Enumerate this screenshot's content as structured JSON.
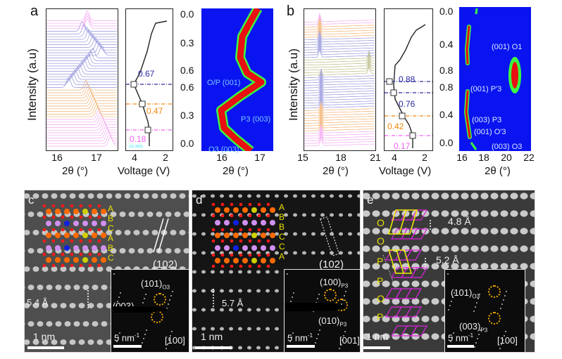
{
  "figure": {
    "panels": {
      "a": {
        "letter": "a",
        "xrd": {
          "ylabel": "Intensity (a.u)",
          "xlabel": "2θ (°)",
          "xticks": [
            "16",
            "17"
          ],
          "trace_colors": {
            "o3": "#f6a0f0",
            "transition": "#f2a860",
            "op": "#8a8ad8",
            "final": "#f6a0f0"
          }
        },
        "voltage": {
          "xlabel": "Voltage (V)",
          "xticks": [
            "4",
            "2"
          ],
          "markers": [
            {
              "x_value": "0.67",
              "color": "#2a2aa0"
            },
            {
              "x_value": "0.47",
              "color": "#f0880a"
            },
            {
              "x_value": "0.18",
              "color": "#f060f0"
            }
          ],
          "bottom_note": "O3 (003)"
        },
        "heatmap": {
          "xlabel": "2θ (°)",
          "xticks": [
            "16",
            "17"
          ],
          "yticks": [
            "0.0",
            "0.3",
            "0.6",
            "0.6",
            "0.3",
            "0.0"
          ],
          "labels": [
            "O/P (001)",
            "P3 (003)",
            "O3 (003)"
          ]
        }
      },
      "b": {
        "letter": "b",
        "xrd": {
          "ylabel": "Intensity (a.u)",
          "xlabel": "2θ (°)",
          "xticks": [
            "15",
            "18",
            "21"
          ]
        },
        "voltage": {
          "xlabel": "Voltage (V)",
          "xticks": [
            "4",
            "2"
          ],
          "markers": [
            {
              "x_value": "0.88",
              "color": "#2a2aa0"
            },
            {
              "x_value": "0.76",
              "color": "#2a2aa0"
            },
            {
              "x_value": "0.42",
              "color": "#f0880a"
            },
            {
              "x_value": "0.17",
              "color": "#f060f0"
            }
          ]
        },
        "heatmap": {
          "xlabel": "2θ (°)",
          "xticks": [
            "16",
            "18",
            "20",
            "22"
          ],
          "yticks": [
            "0.0",
            "0.4",
            "0.8",
            "0.8",
            "0.4",
            "0.0"
          ],
          "labels": [
            "(001) O1",
            "(001) P′3",
            "(003) P3",
            "(001) O′3",
            "(003) O3"
          ]
        }
      },
      "c": {
        "letter": "c",
        "stacking": [
          "A",
          "B",
          "C",
          "A",
          "B",
          "C"
        ],
        "plane": "(102)",
        "plane_bar": "1",
        "spacing": "5.4 Å",
        "scale": "1 nm",
        "inset": {
          "spot1": "(101)",
          "spot1_sub": "O3",
          "spot2": "(003)",
          "spot2_sub": "O3",
          "scale": "5 nm",
          "scale_sup": "-1",
          "zone": "[100]"
        }
      },
      "d": {
        "letter": "d",
        "stacking": [
          "A",
          "B",
          "B",
          "C",
          "C",
          "A"
        ],
        "plane": "(102)",
        "spacing": "5.7 Å",
        "scale": "1 nm",
        "inset": {
          "spot1": "(100)",
          "spot1_sub": "P3",
          "spot2": "(010)",
          "spot2_sub": "P3",
          "scale": "5 nm",
          "scale_sup": "-1",
          "zone": "[001]"
        }
      },
      "e": {
        "letter": "e",
        "stacking": [
          "O",
          "O",
          "P",
          "P",
          "O",
          "P"
        ],
        "spacing1": "4.8 Å",
        "spacing2": "5.2 Å",
        "scale": "1 nm",
        "inset": {
          "spot1": "(101)",
          "spot1_sub": "O3",
          "spot2": "(003)",
          "spot2_sub": "P3",
          "scale": "5 nm",
          "scale_sup": "-1",
          "zone": "[100]"
        }
      }
    },
    "colors": {
      "heatmap_bg": "#0a14f0",
      "heatmap_peak": "#e81010",
      "dash_blue": "#2a2aa0",
      "dash_orange": "#f0880a",
      "dash_pink": "#f060f0",
      "stack_yellow": "#e8e000",
      "circle_orange": "#f0a800"
    }
  }
}
